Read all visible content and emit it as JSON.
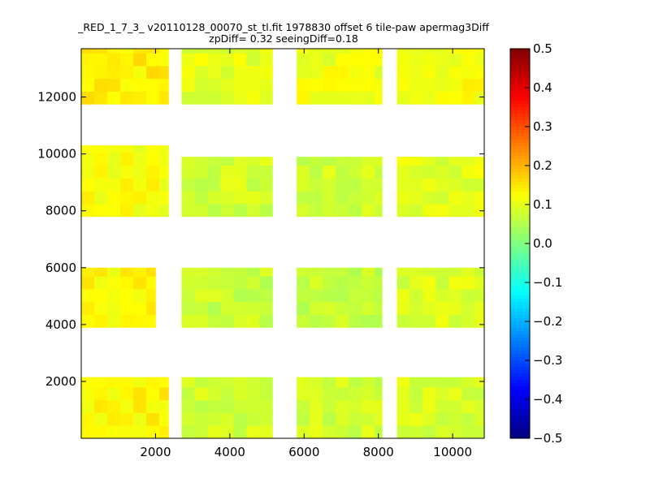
{
  "chart_data": {
    "type": "heatmap",
    "title": "_RED_1_7_3_ v20110128_00070_st_tl.fit 1978830 offset 6 tile-paw apermag3Diff",
    "subtitle": "zpDiff= 0.32 seeingDiff=0.18",
    "xlabel": "",
    "ylabel": "",
    "xlim": [
      0,
      10850
    ],
    "ylim": [
      0,
      13700
    ],
    "xticks": [
      "2000",
      "4000",
      "6000",
      "8000",
      "10000"
    ],
    "xtick_values": [
      2000,
      4000,
      6000,
      8000,
      10000
    ],
    "yticks": [
      "2000",
      "4000",
      "6000",
      "8000",
      "10000",
      "12000"
    ],
    "ytick_values": [
      2000,
      4000,
      6000,
      8000,
      10000,
      12000
    ],
    "grid": false,
    "colorbar": {
      "colormap": "jet",
      "min": -0.5,
      "max": 0.5,
      "ticks": [
        "0.5",
        "0.4",
        "0.3",
        "0.2",
        "0.1",
        "0.0",
        "−0.1",
        "−0.2",
        "−0.3",
        "−0.4",
        "−0.5"
      ],
      "tick_values": [
        0.5,
        0.4,
        0.3,
        0.2,
        0.1,
        0.0,
        -0.1,
        -0.2,
        -0.3,
        -0.4,
        -0.5
      ]
    },
    "cell_size": [
      350,
      450
    ],
    "blocks": [
      {
        "x": [
          0,
          2350
        ],
        "y": [
          0,
          2150
        ],
        "value": 0.13
      },
      {
        "x": [
          2700,
          5150
        ],
        "y": [
          0,
          2150
        ],
        "value": 0.08
      },
      {
        "x": [
          5800,
          8100
        ],
        "y": [
          0,
          2150
        ],
        "value": 0.08
      },
      {
        "x": [
          8500,
          10850
        ],
        "y": [
          0,
          2150
        ],
        "value": 0.09
      },
      {
        "x": [
          0,
          2000
        ],
        "y": [
          3900,
          6000
        ],
        "value": 0.13
      },
      {
        "x": [
          2700,
          5150
        ],
        "y": [
          3900,
          6000
        ],
        "value": 0.07
      },
      {
        "x": [
          5800,
          8100
        ],
        "y": [
          3900,
          6000
        ],
        "value": 0.07
      },
      {
        "x": [
          8500,
          10850
        ],
        "y": [
          3900,
          6000
        ],
        "value": 0.09
      },
      {
        "x": [
          0,
          2350
        ],
        "y": [
          7800,
          10300
        ],
        "value": 0.12
      },
      {
        "x": [
          2700,
          5150
        ],
        "y": [
          7800,
          9900
        ],
        "value": 0.08
      },
      {
        "x": [
          5800,
          8100
        ],
        "y": [
          7800,
          9900
        ],
        "value": 0.08
      },
      {
        "x": [
          8500,
          10850
        ],
        "y": [
          7800,
          9900
        ],
        "value": 0.1
      },
      {
        "x": [
          0,
          2350
        ],
        "y": [
          11750,
          13700
        ],
        "value": 0.14
      },
      {
        "x": [
          2700,
          5150
        ],
        "y": [
          11750,
          13700
        ],
        "value": 0.1
      },
      {
        "x": [
          5800,
          8100
        ],
        "y": [
          11750,
          13700
        ],
        "value": 0.11
      },
      {
        "x": [
          8500,
          10850
        ],
        "y": [
          11750,
          13700
        ],
        "value": 0.12
      }
    ]
  }
}
